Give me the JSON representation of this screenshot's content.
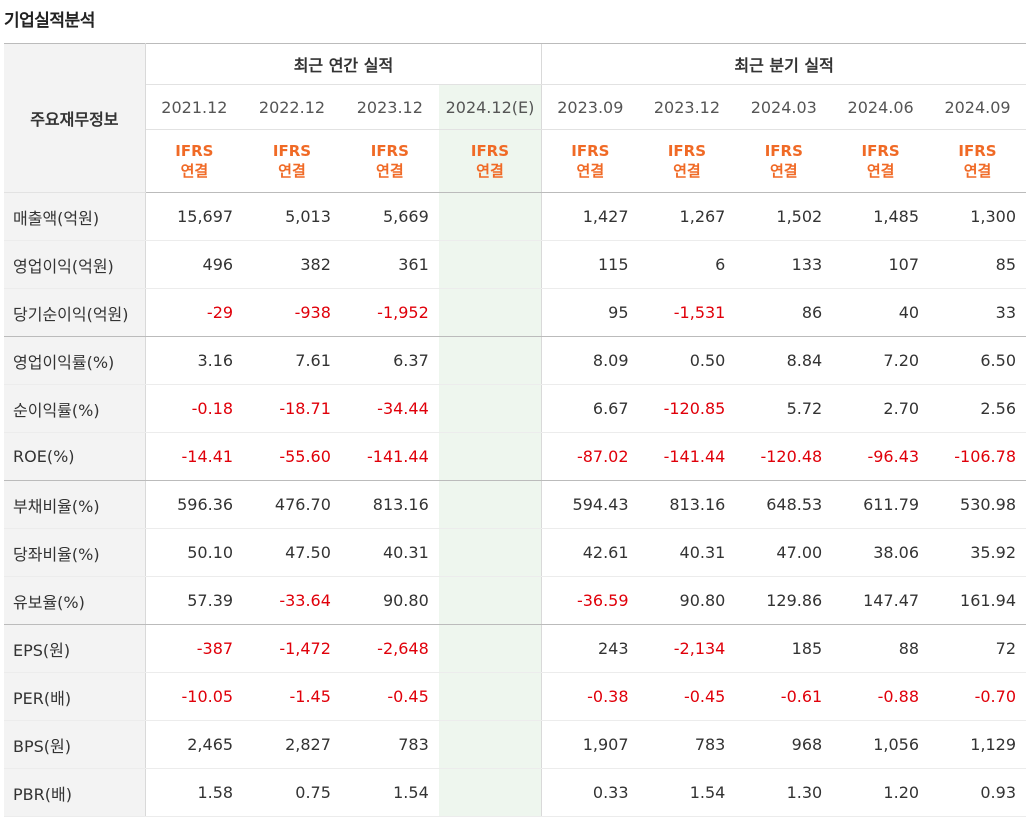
{
  "title": "기업실적분석",
  "header": {
    "label": "주요재무정보",
    "annual_group": "최근 연간 실적",
    "quarter_group": "최근 분기 실적",
    "periods": [
      "2021.12",
      "2022.12",
      "2023.12",
      "2024.12(E)",
      "2023.09",
      "2023.12",
      "2024.03",
      "2024.06",
      "2024.09"
    ],
    "ifrs_line1": "IFRS",
    "ifrs_line2": "연결"
  },
  "rows": [
    {
      "label": "매출액(억원)",
      "values": [
        "15,697",
        "5,013",
        "5,669",
        "",
        "1,427",
        "1,267",
        "1,502",
        "1,485",
        "1,300"
      ]
    },
    {
      "label": "영업이익(억원)",
      "values": [
        "496",
        "382",
        "361",
        "",
        "115",
        "6",
        "133",
        "107",
        "85"
      ]
    },
    {
      "label": "당기순이익(억원)",
      "values": [
        "-29",
        "-938",
        "-1,952",
        "",
        "95",
        "-1,531",
        "86",
        "40",
        "33"
      ]
    },
    {
      "label": "영업이익률(%)",
      "values": [
        "3.16",
        "7.61",
        "6.37",
        "",
        "8.09",
        "0.50",
        "8.84",
        "7.20",
        "6.50"
      ]
    },
    {
      "label": "순이익률(%)",
      "values": [
        "-0.18",
        "-18.71",
        "-34.44",
        "",
        "6.67",
        "-120.85",
        "5.72",
        "2.70",
        "2.56"
      ]
    },
    {
      "label": "ROE(%)",
      "values": [
        "-14.41",
        "-55.60",
        "-141.44",
        "",
        "-87.02",
        "-141.44",
        "-120.48",
        "-96.43",
        "-106.78"
      ]
    },
    {
      "label": "부채비율(%)",
      "values": [
        "596.36",
        "476.70",
        "813.16",
        "",
        "594.43",
        "813.16",
        "648.53",
        "611.79",
        "530.98"
      ]
    },
    {
      "label": "당좌비율(%)",
      "values": [
        "50.10",
        "47.50",
        "40.31",
        "",
        "42.61",
        "40.31",
        "47.00",
        "38.06",
        "35.92"
      ]
    },
    {
      "label": "유보율(%)",
      "values": [
        "57.39",
        "-33.64",
        "90.80",
        "",
        "-36.59",
        "90.80",
        "129.86",
        "147.47",
        "161.94"
      ]
    },
    {
      "label": "EPS(원)",
      "values": [
        "-387",
        "-1,472",
        "-2,648",
        "",
        "243",
        "-2,134",
        "185",
        "88",
        "72"
      ]
    },
    {
      "label": "PER(배)",
      "values": [
        "-10.05",
        "-1.45",
        "-0.45",
        "",
        "-0.38",
        "-0.45",
        "-0.61",
        "-0.88",
        "-0.70"
      ]
    },
    {
      "label": "BPS(원)",
      "values": [
        "2,465",
        "2,827",
        "783",
        "",
        "1,907",
        "783",
        "968",
        "1,056",
        "1,129"
      ]
    },
    {
      "label": "PBR(배)",
      "values": [
        "1.58",
        "0.75",
        "1.54",
        "",
        "0.33",
        "1.54",
        "1.30",
        "1.20",
        "0.93"
      ]
    }
  ],
  "colors": {
    "negative": "#e0000a",
    "ifrs": "#f06a26",
    "estimate_bg": "#eef6ee",
    "label_bg": "#f3f3f3"
  }
}
